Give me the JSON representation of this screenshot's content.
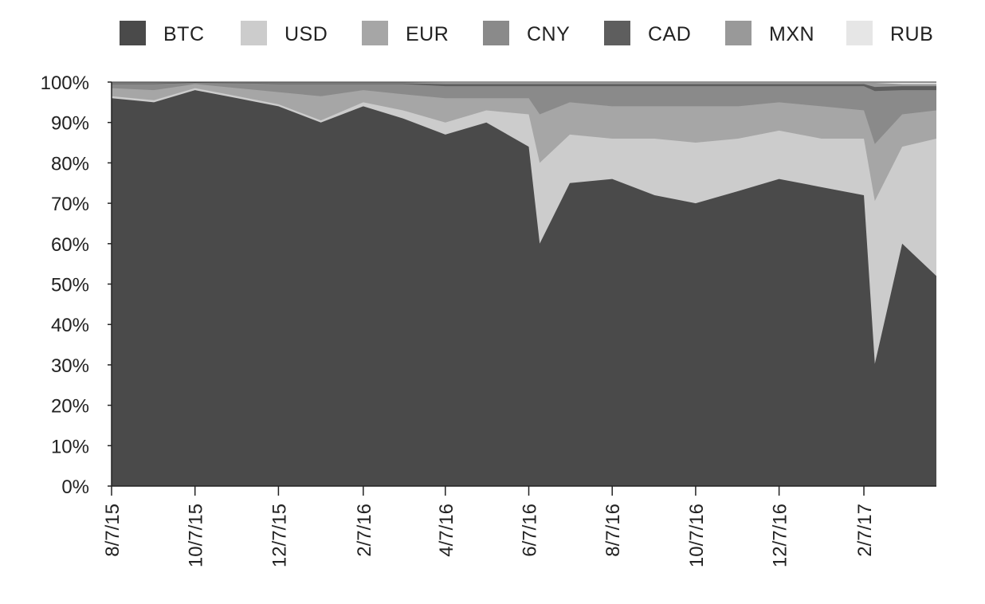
{
  "chart_data": {
    "type": "area",
    "stacked": true,
    "normalized": true,
    "title": "",
    "xlabel": "",
    "ylabel": "",
    "legend_position": "top",
    "grid": false,
    "ylim": [
      0,
      100
    ],
    "y_ticks": [
      "0%",
      "10%",
      "20%",
      "30%",
      "40%",
      "50%",
      "60%",
      "70%",
      "80%",
      "90%",
      "100%"
    ],
    "x_ticks": [
      "8/7/15",
      "10/7/15",
      "12/7/15",
      "2/7/16",
      "4/7/16",
      "6/7/16",
      "8/7/16",
      "10/7/16",
      "12/7/16",
      "2/7/17"
    ],
    "x_range": [
      "2015-08-07",
      "2017-04-01"
    ],
    "x": [
      "2015-08-07",
      "2015-09-07",
      "2015-10-07",
      "2015-11-07",
      "2015-12-07",
      "2016-01-07",
      "2016-02-07",
      "2016-03-07",
      "2016-04-07",
      "2016-05-07",
      "2016-06-07",
      "2016-06-15",
      "2016-07-07",
      "2016-08-07",
      "2016-09-07",
      "2016-10-07",
      "2016-11-07",
      "2016-12-07",
      "2017-01-07",
      "2017-02-07",
      "2017-02-15",
      "2017-03-07",
      "2017-04-01"
    ],
    "series": [
      {
        "name": "BTC",
        "color": "#4a4a4a",
        "values": [
          96,
          95,
          98,
          96,
          94,
          90,
          94,
          91,
          87,
          90,
          84,
          60,
          75,
          76,
          72,
          70,
          73,
          76,
          74,
          72,
          30,
          60,
          52
        ]
      },
      {
        "name": "USD",
        "color": "#cccccc",
        "values": [
          0.5,
          0.5,
          0.5,
          0.5,
          0.5,
          0.5,
          1,
          2,
          3,
          3,
          8,
          20,
          12,
          10,
          14,
          15,
          13,
          12,
          12,
          14,
          40,
          24,
          34
        ]
      },
      {
        "name": "EUR",
        "color": "#a6a6a6",
        "values": [
          2,
          2.5,
          1,
          2,
          3,
          6,
          3,
          4,
          6,
          3,
          4,
          12,
          8,
          8,
          8,
          9,
          8,
          7,
          8,
          7,
          14,
          8,
          7
        ]
      },
      {
        "name": "CNY",
        "color": "#8a8a8a",
        "values": [
          1,
          1.5,
          0.3,
          1.2,
          2,
          3,
          1.5,
          2.5,
          3,
          3,
          3,
          7,
          4,
          5,
          5,
          5,
          5,
          4,
          5,
          6,
          13,
          6,
          5
        ]
      },
      {
        "name": "CAD",
        "color": "#5e5e5e",
        "values": [
          0.2,
          0.2,
          0.1,
          0.1,
          0.2,
          0.2,
          0.2,
          0.2,
          0.5,
          0.5,
          0.5,
          0.5,
          0.5,
          0.5,
          0.5,
          0.5,
          0.5,
          0.5,
          0.5,
          0.5,
          1,
          1,
          1
        ]
      },
      {
        "name": "MXN",
        "color": "#999999",
        "values": [
          0.2,
          0.2,
          0.05,
          0.1,
          0.2,
          0.2,
          0.2,
          0.2,
          0.3,
          0.3,
          0.3,
          0.3,
          0.3,
          0.3,
          0.3,
          0.3,
          0.3,
          0.3,
          0.3,
          0.3,
          1,
          0.5,
          0.5
        ]
      },
      {
        "name": "RUB",
        "color": "#e6e6e6",
        "values": [
          0.1,
          0.1,
          0.05,
          0.1,
          0.1,
          0.1,
          0.1,
          0.1,
          0.2,
          0.2,
          0.2,
          0.2,
          0.2,
          0.2,
          0.2,
          0.2,
          0.2,
          0.2,
          0.2,
          0.2,
          0.2,
          0.5,
          0.5
        ]
      }
    ]
  }
}
